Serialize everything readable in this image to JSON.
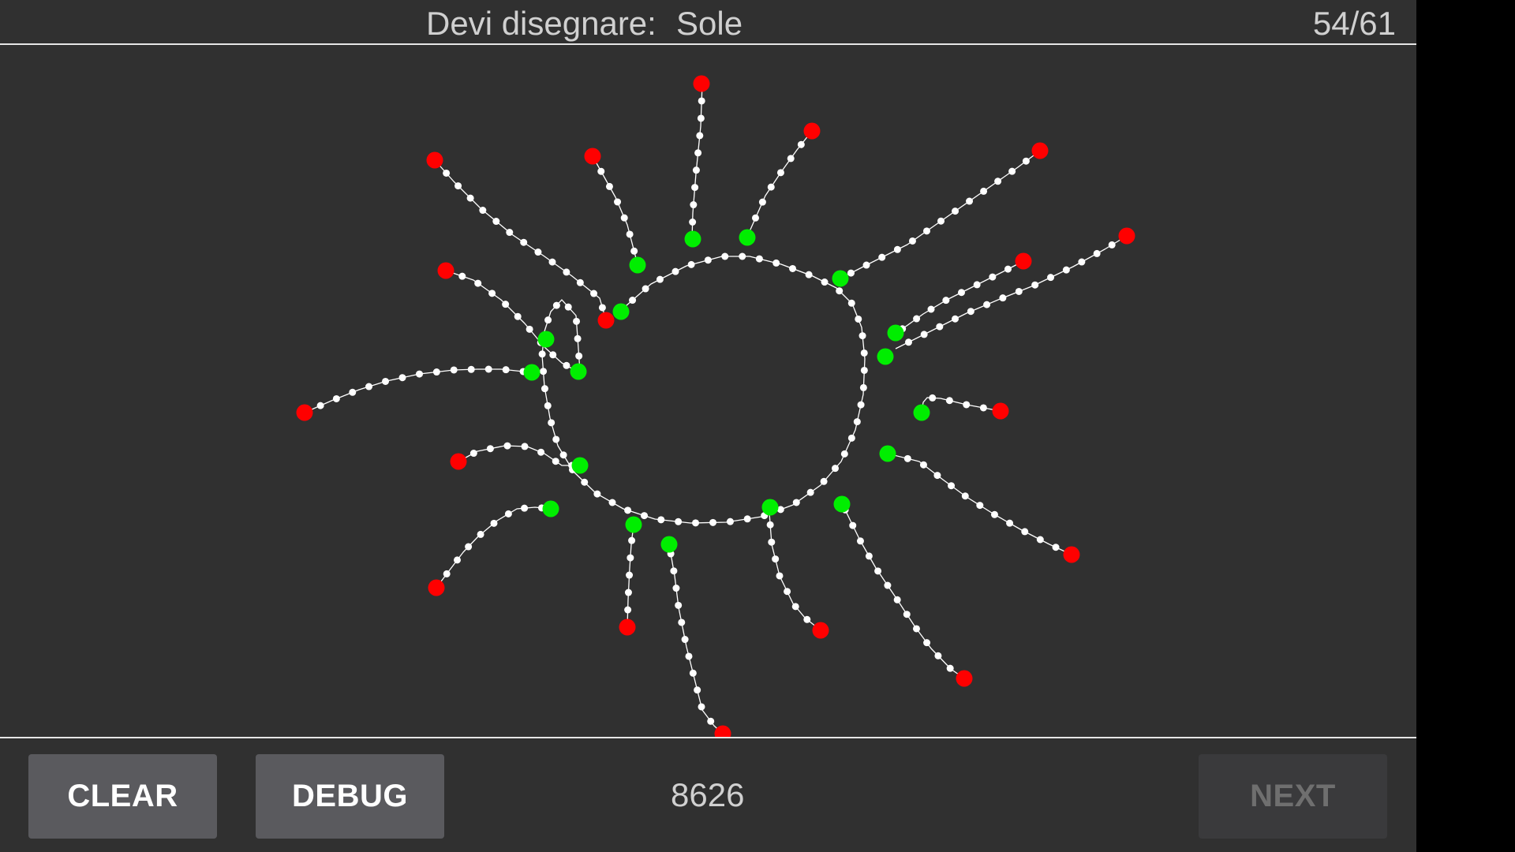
{
  "header": {
    "prompt_label": "Devi disegnare:",
    "prompt_word": "Sole",
    "counter": "54/61"
  },
  "footer": {
    "clear_label": "CLEAR",
    "debug_label": "DEBUG",
    "score": "8626",
    "next_label": "NEXT"
  },
  "colors": {
    "background": "#303030",
    "stroke": "#ffffff",
    "stroke_start": "#00ee00",
    "stroke_end": "#ff0000",
    "divider": "#e6e6e6"
  },
  "icons": {
    "stroke_start": "green-dot-icon",
    "stroke_end": "red-dot-icon"
  }
}
